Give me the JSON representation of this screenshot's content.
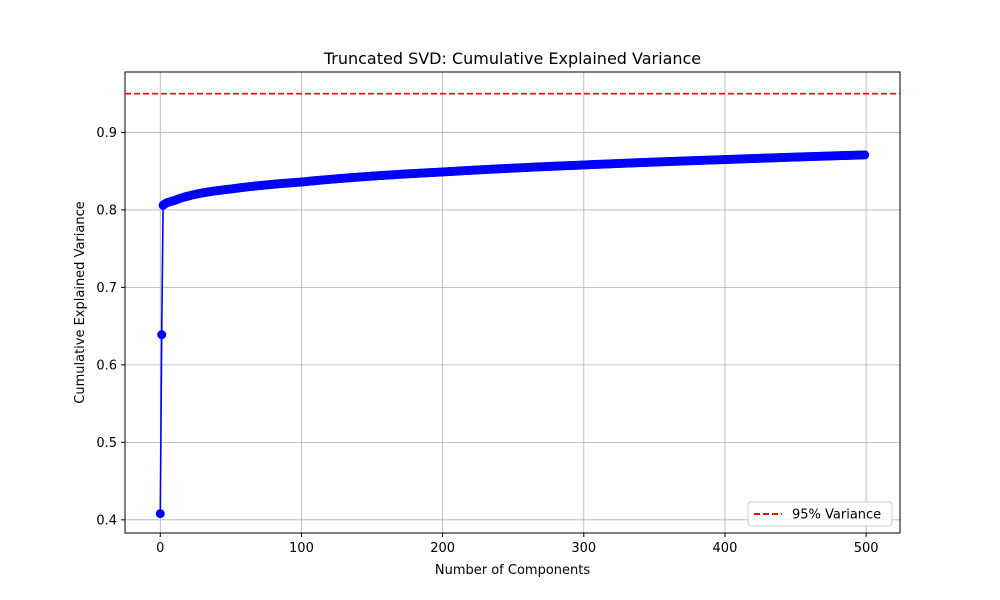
{
  "chart_data": {
    "type": "line",
    "title": "Truncated SVD: Cumulative Explained Variance",
    "xlabel": "Number of Components",
    "ylabel": "Cumulative Explained Variance",
    "xlim": [
      -25,
      524
    ],
    "ylim": [
      0.383,
      0.978
    ],
    "xticks": [
      0,
      100,
      200,
      300,
      400,
      500
    ],
    "xtick_labels": [
      "0",
      "100",
      "200",
      "300",
      "400",
      "500"
    ],
    "yticks": [
      0.4,
      0.5,
      0.6,
      0.7,
      0.8,
      0.9
    ],
    "ytick_labels": [
      "0.4",
      "0.5",
      "0.6",
      "0.7",
      "0.8",
      "0.9"
    ],
    "grid": true,
    "legend_position": "lower-right",
    "series_color": "#0000ff",
    "reference_color": "#ff0000",
    "series": [
      {
        "marker": "circle",
        "n_points": 500,
        "x_start": 0,
        "x_step": 1,
        "first_values": [
          0.408,
          0.639,
          0.806
        ],
        "curve_samples_x": [
          2,
          10,
          20,
          50,
          100,
          200,
          300,
          400,
          499
        ],
        "curve_samples_y": [
          0.806,
          0.812,
          0.818,
          0.827,
          0.836,
          0.849,
          0.858,
          0.865,
          0.871
        ]
      }
    ],
    "reference_lines": [
      {
        "orientation": "horizontal",
        "y": 0.95,
        "style": "dashed",
        "name": "95% Variance"
      }
    ],
    "legend": [
      "95% Variance"
    ]
  }
}
